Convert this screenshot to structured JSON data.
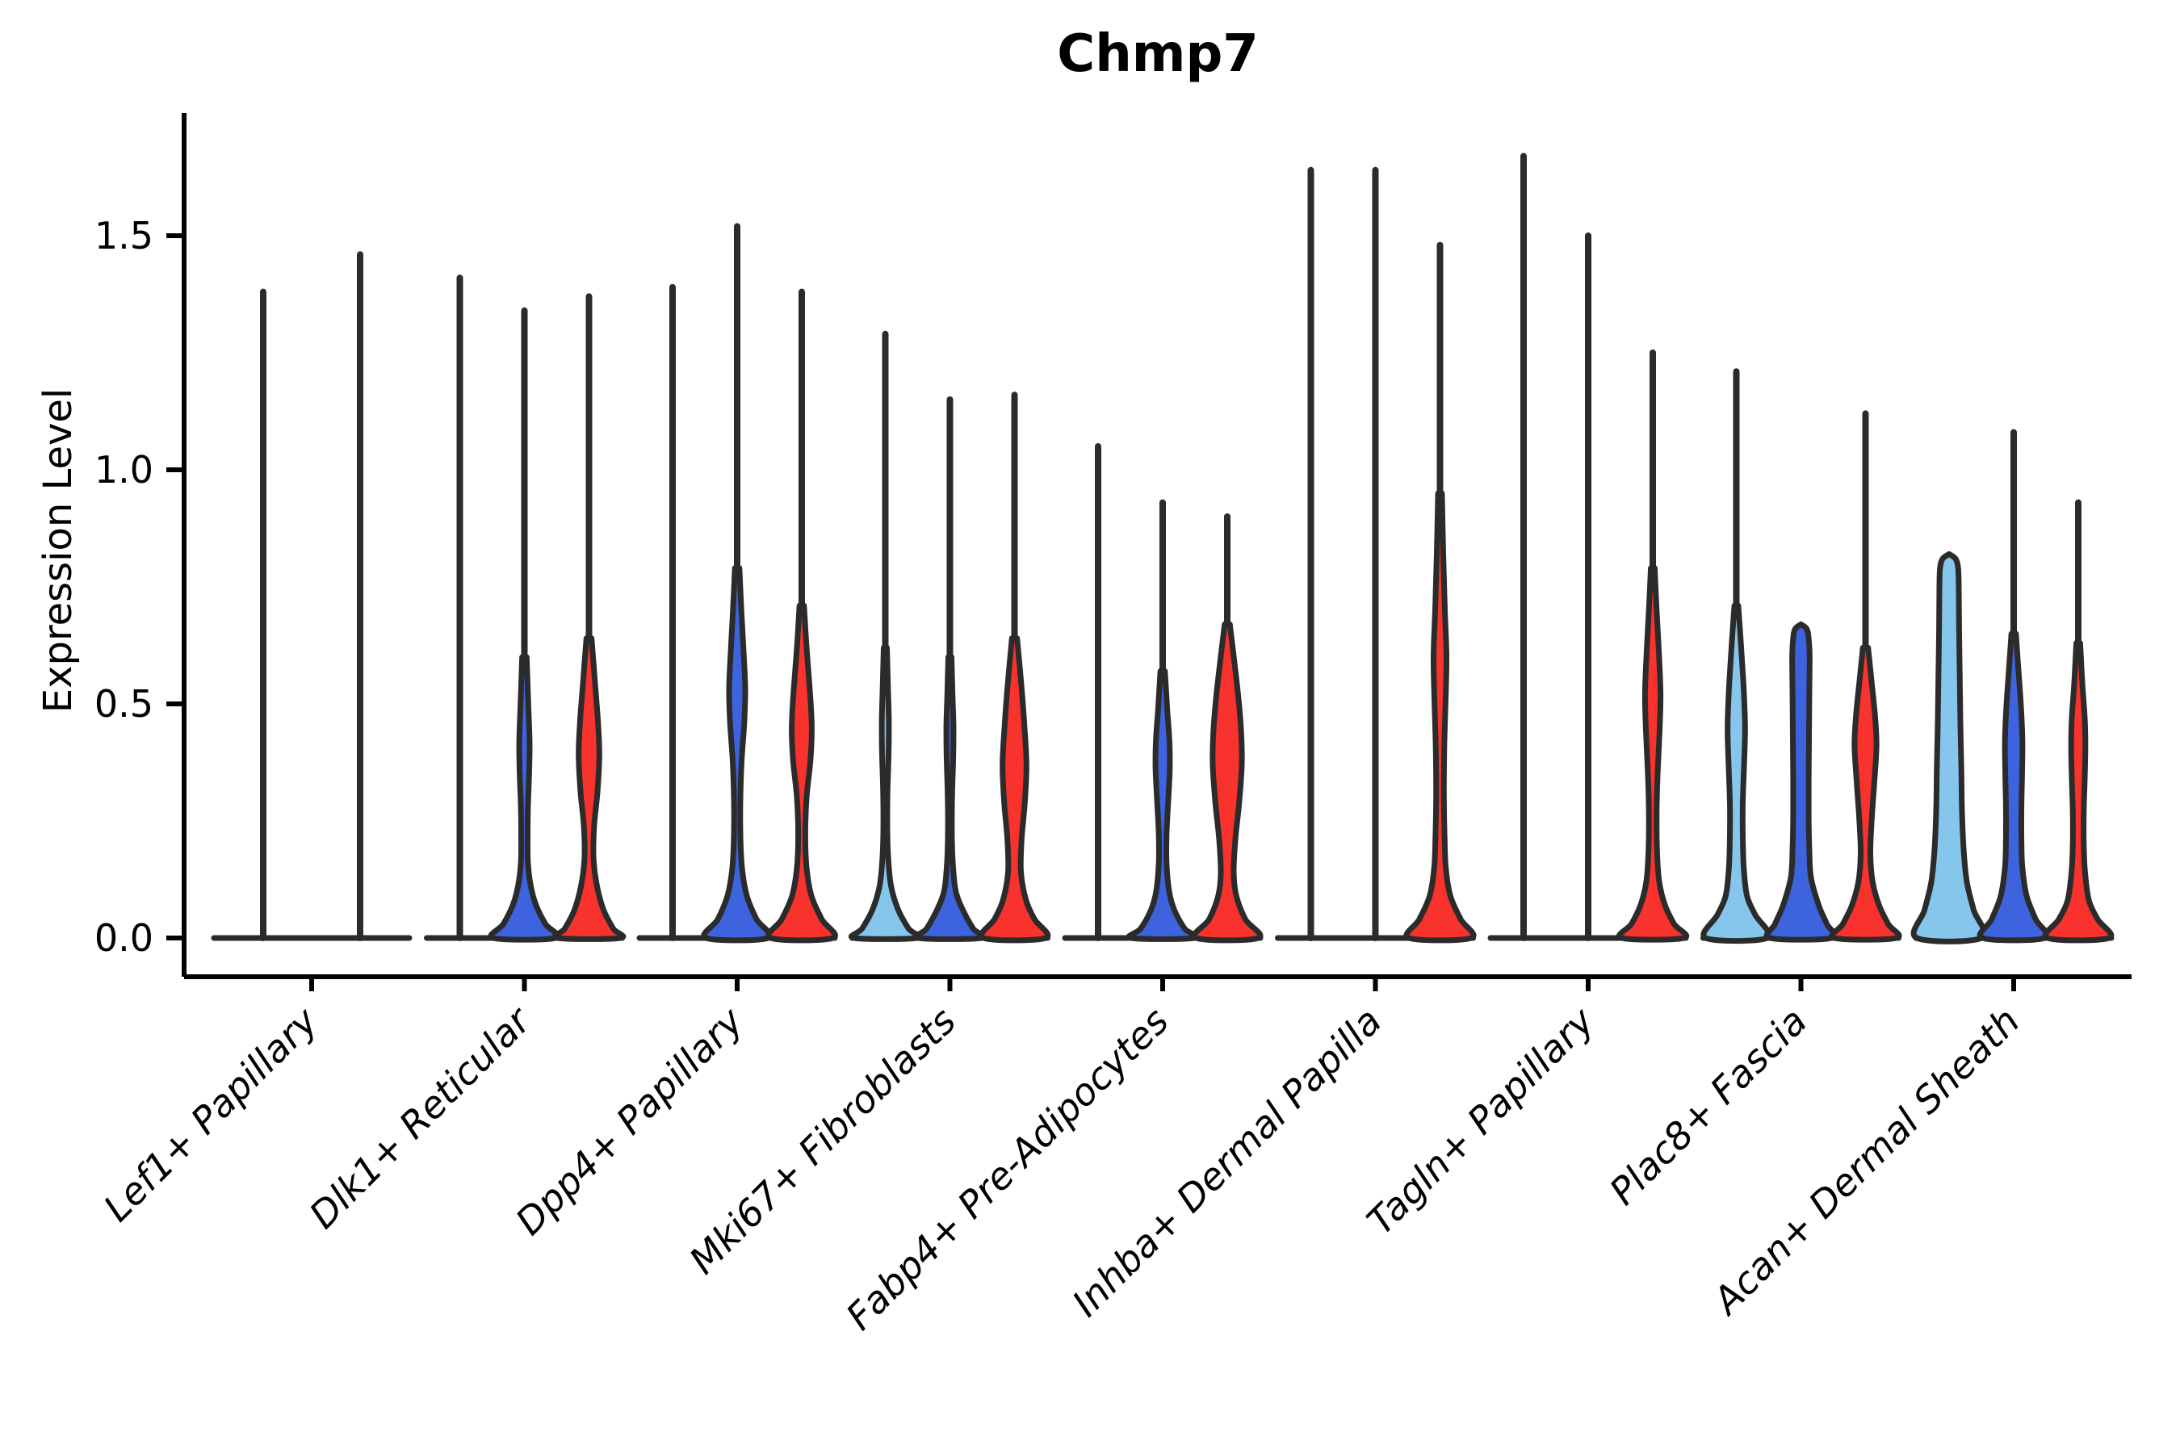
{
  "title": "Chmp7",
  "y_axis": {
    "label": "Expression Level"
  },
  "colors": {
    "light_blue": "#86C5EC",
    "dark_blue": "#3E63DE",
    "red": "#F8322C",
    "outline": "#2B2B2B",
    "axis": "#000000",
    "background": "#FFFFFF"
  },
  "chart_data": {
    "type": "violin",
    "title": "Chmp7",
    "ylabel": "Expression Level",
    "ylim": [
      -0.06,
      1.76
    ],
    "grid": false,
    "legend_position": "none",
    "series_colors": [
      "light_blue",
      "dark_blue",
      "red"
    ],
    "yticks": [
      {
        "label": "0.0",
        "value": 0.0
      },
      {
        "label": "0.5",
        "value": 0.5
      },
      {
        "label": "1.0",
        "value": 1.0
      },
      {
        "label": "1.5",
        "value": 1.5
      }
    ],
    "categories": [
      "Lef1+ Papillary",
      "Dlk1+ Reticular",
      "Dpp4+ Papillary",
      "Mki67+ Fibroblasts",
      "Fabp4+ Pre-Adipocytes",
      "Inhba+ Dermal Papilla",
      "Tagln+ Papillary",
      "Plac8+ Fascia",
      "Acan+ Dermal Sheath"
    ],
    "groups": [
      {
        "category": "Lef1+ Papillary",
        "violins": [
          {
            "color": "dark_blue",
            "line_max": 1.38,
            "body": null
          },
          {
            "color": "red",
            "line_max": 1.46,
            "body": null
          }
        ]
      },
      {
        "category": "Dlk1+ Reticular",
        "violins": [
          {
            "color": "light_blue",
            "line_max": 1.41,
            "body": null
          },
          {
            "color": "dark_blue",
            "line_max": 1.34,
            "body": [
              [
                0.6,
                0.07
              ],
              [
                0.5,
                0.12
              ],
              [
                0.42,
                0.16
              ],
              [
                0.36,
                0.15
              ],
              [
                0.28,
                0.11
              ],
              [
                0.22,
                0.1
              ],
              [
                0.16,
                0.11
              ],
              [
                0.11,
                0.2
              ],
              [
                0.07,
                0.36
              ],
              [
                0.03,
                0.65
              ],
              [
                0,
                0.96
              ]
            ]
          },
          {
            "color": "red",
            "line_max": 1.37,
            "body": [
              [
                0.64,
                0.08
              ],
              [
                0.55,
                0.18
              ],
              [
                0.46,
                0.28
              ],
              [
                0.39,
                0.32
              ],
              [
                0.31,
                0.26
              ],
              [
                0.24,
                0.16
              ],
              [
                0.17,
                0.14
              ],
              [
                0.11,
                0.25
              ],
              [
                0.06,
                0.45
              ],
              [
                0.02,
                0.75
              ],
              [
                0,
                0.96
              ]
            ]
          }
        ]
      },
      {
        "category": "Dpp4+ Papillary",
        "violins": [
          {
            "color": "light_blue",
            "line_max": 1.39,
            "body": null
          },
          {
            "color": "dark_blue",
            "line_max": 1.52,
            "body": [
              [
                0.79,
                0.07
              ],
              [
                0.7,
                0.13
              ],
              [
                0.61,
                0.2
              ],
              [
                0.53,
                0.25
              ],
              [
                0.46,
                0.22
              ],
              [
                0.38,
                0.14
              ],
              [
                0.3,
                0.1
              ],
              [
                0.22,
                0.1
              ],
              [
                0.15,
                0.15
              ],
              [
                0.09,
                0.3
              ],
              [
                0.04,
                0.6
              ],
              [
                0,
                0.96
              ]
            ]
          },
          {
            "color": "red",
            "line_max": 1.38,
            "body": [
              [
                0.71,
                0.07
              ],
              [
                0.62,
                0.15
              ],
              [
                0.53,
                0.25
              ],
              [
                0.45,
                0.31
              ],
              [
                0.38,
                0.27
              ],
              [
                0.3,
                0.15
              ],
              [
                0.22,
                0.11
              ],
              [
                0.15,
                0.15
              ],
              [
                0.09,
                0.3
              ],
              [
                0.04,
                0.62
              ],
              [
                0,
                0.96
              ]
            ]
          }
        ]
      },
      {
        "category": "Mki67+ Fibroblasts",
        "violins": [
          {
            "color": "light_blue",
            "line_max": 1.29,
            "body": [
              [
                0.62,
                0.05
              ],
              [
                0.54,
                0.08
              ],
              [
                0.46,
                0.11
              ],
              [
                0.39,
                0.1
              ],
              [
                0.32,
                0.07
              ],
              [
                0.24,
                0.06
              ],
              [
                0.17,
                0.09
              ],
              [
                0.11,
                0.18
              ],
              [
                0.06,
                0.4
              ],
              [
                0.02,
                0.72
              ],
              [
                0,
                0.96
              ]
            ]
          },
          {
            "color": "dark_blue",
            "line_max": 1.15,
            "body": [
              [
                0.6,
                0.05
              ],
              [
                0.52,
                0.08
              ],
              [
                0.45,
                0.11
              ],
              [
                0.38,
                0.1
              ],
              [
                0.31,
                0.07
              ],
              [
                0.23,
                0.06
              ],
              [
                0.16,
                0.09
              ],
              [
                0.1,
                0.18
              ],
              [
                0.06,
                0.4
              ],
              [
                0.02,
                0.72
              ],
              [
                0,
                0.96
              ]
            ]
          },
          {
            "color": "red",
            "line_max": 1.16,
            "body": [
              [
                0.64,
                0.08
              ],
              [
                0.55,
                0.2
              ],
              [
                0.46,
                0.3
              ],
              [
                0.37,
                0.37
              ],
              [
                0.29,
                0.32
              ],
              [
                0.21,
                0.22
              ],
              [
                0.14,
                0.2
              ],
              [
                0.08,
                0.36
              ],
              [
                0.04,
                0.62
              ],
              [
                0,
                0.96
              ]
            ]
          }
        ]
      },
      {
        "category": "Fabp4+ Pre-Adipocytes",
        "violins": [
          {
            "color": "light_blue",
            "line_max": 1.05,
            "body": null
          },
          {
            "color": "dark_blue",
            "line_max": 0.93,
            "body": [
              [
                0.57,
                0.07
              ],
              [
                0.49,
                0.14
              ],
              [
                0.42,
                0.21
              ],
              [
                0.36,
                0.22
              ],
              [
                0.29,
                0.17
              ],
              [
                0.22,
                0.12
              ],
              [
                0.16,
                0.12
              ],
              [
                0.1,
                0.2
              ],
              [
                0.06,
                0.36
              ],
              [
                0.02,
                0.68
              ],
              [
                0,
                0.96
              ]
            ]
          },
          {
            "color": "red",
            "line_max": 0.9,
            "body": [
              [
                0.67,
                0.08
              ],
              [
                0.59,
                0.22
              ],
              [
                0.51,
                0.35
              ],
              [
                0.44,
                0.43
              ],
              [
                0.37,
                0.45
              ],
              [
                0.29,
                0.37
              ],
              [
                0.21,
                0.25
              ],
              [
                0.14,
                0.2
              ],
              [
                0.09,
                0.28
              ],
              [
                0.04,
                0.56
              ],
              [
                0,
                0.96
              ]
            ]
          }
        ]
      },
      {
        "category": "Inhba+ Dermal Papilla",
        "violins": [
          {
            "color": "light_blue",
            "line_max": 1.64,
            "body": null
          },
          {
            "color": "dark_blue",
            "line_max": 1.64,
            "body": null
          },
          {
            "color": "red",
            "line_max": 1.48,
            "body": [
              [
                0.95,
                0.06
              ],
              [
                0.82,
                0.1
              ],
              [
                0.7,
                0.15
              ],
              [
                0.6,
                0.2
              ],
              [
                0.5,
                0.17
              ],
              [
                0.4,
                0.13
              ],
              [
                0.3,
                0.12
              ],
              [
                0.22,
                0.14
              ],
              [
                0.15,
                0.18
              ],
              [
                0.09,
                0.32
              ],
              [
                0.04,
                0.64
              ],
              [
                0,
                0.96
              ]
            ]
          }
        ]
      },
      {
        "category": "Tagln+ Papillary",
        "violins": [
          {
            "color": "light_blue",
            "line_max": 1.67,
            "body": null
          },
          {
            "color": "dark_blue",
            "line_max": 1.5,
            "body": null
          },
          {
            "color": "red",
            "line_max": 1.25,
            "body": [
              [
                0.79,
                0.06
              ],
              [
                0.7,
                0.12
              ],
              [
                0.61,
                0.19
              ],
              [
                0.52,
                0.24
              ],
              [
                0.44,
                0.21
              ],
              [
                0.35,
                0.15
              ],
              [
                0.27,
                0.12
              ],
              [
                0.19,
                0.13
              ],
              [
                0.12,
                0.2
              ],
              [
                0.07,
                0.38
              ],
              [
                0.03,
                0.66
              ],
              [
                0,
                0.96
              ]
            ]
          }
        ]
      },
      {
        "category": "Plac8+ Fascia",
        "violins": [
          {
            "color": "light_blue",
            "line_max": 1.21,
            "body": [
              [
                0.71,
                0.06
              ],
              [
                0.62,
                0.15
              ],
              [
                0.53,
                0.23
              ],
              [
                0.45,
                0.27
              ],
              [
                0.37,
                0.24
              ],
              [
                0.29,
                0.2
              ],
              [
                0.22,
                0.2
              ],
              [
                0.15,
                0.23
              ],
              [
                0.09,
                0.33
              ],
              [
                0.05,
                0.58
              ],
              [
                0,
                0.95
              ]
            ]
          },
          {
            "color": "dark_blue",
            "line_max": null,
            "body": [
              [
                0.67,
                0.0
              ],
              [
                0.66,
                0.18
              ],
              [
                0.64,
                0.24
              ],
              [
                0.6,
                0.27
              ],
              [
                0.52,
                0.26
              ],
              [
                0.43,
                0.25
              ],
              [
                0.34,
                0.24
              ],
              [
                0.26,
                0.24
              ],
              [
                0.19,
                0.26
              ],
              [
                0.13,
                0.31
              ],
              [
                0.07,
                0.55
              ],
              [
                0.03,
                0.8
              ],
              [
                0,
                0.95
              ]
            ]
          },
          {
            "color": "red",
            "line_max": 1.12,
            "body": [
              [
                0.62,
                0.08
              ],
              [
                0.54,
                0.2
              ],
              [
                0.47,
                0.3
              ],
              [
                0.41,
                0.34
              ],
              [
                0.33,
                0.27
              ],
              [
                0.25,
                0.19
              ],
              [
                0.18,
                0.15
              ],
              [
                0.12,
                0.22
              ],
              [
                0.07,
                0.42
              ],
              [
                0.03,
                0.7
              ],
              [
                0,
                0.95
              ]
            ]
          }
        ]
      },
      {
        "category": "Acan+ Dermal Sheath",
        "violins": [
          {
            "color": "light_blue",
            "line_max": null,
            "body": [
              [
                0.82,
                0.0
              ],
              [
                0.81,
                0.2
              ],
              [
                0.79,
                0.28
              ],
              [
                0.75,
                0.3
              ],
              [
                0.66,
                0.31
              ],
              [
                0.56,
                0.33
              ],
              [
                0.46,
                0.35
              ],
              [
                0.36,
                0.38
              ],
              [
                0.27,
                0.4
              ],
              [
                0.19,
                0.45
              ],
              [
                0.12,
                0.55
              ],
              [
                0.06,
                0.76
              ],
              [
                0,
                1.0
              ]
            ]
          },
          {
            "color": "dark_blue",
            "line_max": 1.08,
            "body": [
              [
                0.65,
                0.07
              ],
              [
                0.57,
                0.15
              ],
              [
                0.49,
                0.23
              ],
              [
                0.42,
                0.27
              ],
              [
                0.35,
                0.26
              ],
              [
                0.28,
                0.24
              ],
              [
                0.21,
                0.24
              ],
              [
                0.15,
                0.27
              ],
              [
                0.09,
                0.4
              ],
              [
                0.04,
                0.68
              ],
              [
                0,
                0.96
              ]
            ]
          },
          {
            "color": "red",
            "line_max": 0.93,
            "body": [
              [
                0.63,
                0.06
              ],
              [
                0.55,
                0.12
              ],
              [
                0.47,
                0.2
              ],
              [
                0.41,
                0.22
              ],
              [
                0.34,
                0.2
              ],
              [
                0.27,
                0.17
              ],
              [
                0.2,
                0.17
              ],
              [
                0.14,
                0.21
              ],
              [
                0.08,
                0.33
              ],
              [
                0.04,
                0.6
              ],
              [
                0,
                0.95
              ]
            ]
          }
        ]
      }
    ]
  }
}
